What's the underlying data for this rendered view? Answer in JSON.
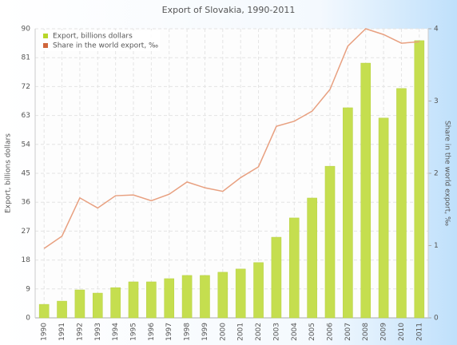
{
  "chart_data": {
    "type": "bar_line",
    "title": "Export of Slovakia, 1990-2011",
    "ylabel": "Export, billions dollars",
    "y2label": "Share in the world export, ‰",
    "categories": [
      "1990",
      "1991",
      "1992",
      "1993",
      "1994",
      "1995",
      "1996",
      "1997",
      "1998",
      "1999",
      "2000",
      "2001",
      "2002",
      "2003",
      "2004",
      "2005",
      "2006",
      "2007",
      "2008",
      "2009",
      "2010",
      "2011"
    ],
    "series": [
      {
        "name": "Export, billions dollars",
        "type": "bar",
        "color": "#c5de4f",
        "values": [
          4.2,
          5.2,
          8.7,
          7.7,
          9.4,
          11.2,
          11.2,
          12.2,
          13.2,
          13.2,
          14.2,
          15.2,
          17.2,
          25.1,
          31.1,
          37.3,
          47.2,
          65.4,
          79.3,
          62.2,
          71.4,
          86.3
        ]
      },
      {
        "name": "Share in the world export, ‰",
        "type": "line",
        "axis": "y2",
        "color": "#e8a080",
        "values": [
          0.96,
          1.13,
          1.66,
          1.52,
          1.69,
          1.7,
          1.62,
          1.71,
          1.88,
          1.8,
          1.75,
          1.94,
          2.09,
          2.65,
          2.72,
          2.86,
          3.16,
          3.76,
          4.0,
          3.92,
          3.8,
          3.82
        ]
      }
    ],
    "ylim": [
      0,
      90
    ],
    "yticks": [
      0,
      9,
      18,
      27,
      36,
      45,
      54,
      63,
      72,
      81,
      90
    ],
    "y2lim": [
      0,
      4
    ],
    "y2ticks": [
      0,
      1,
      2,
      3,
      4
    ],
    "grid": true,
    "legend": "top-left"
  }
}
